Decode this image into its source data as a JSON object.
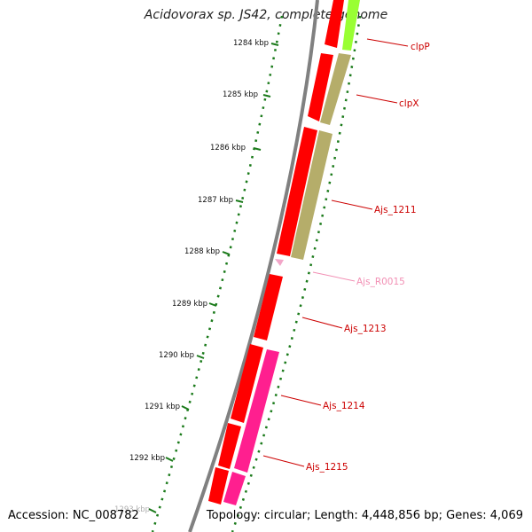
{
  "title": "Acidovorax sp. JS42, complete genome",
  "footer": {
    "accession": "Accession: NC_008782",
    "summary": "Topology: circular; Length: 4,448,856 bp; Genes: 4,069"
  },
  "ticks": [
    "1284 kbp",
    "1285 kbp",
    "1286 kbp",
    "1287 kbp",
    "1288 kbp",
    "1289 kbp",
    "1290 kbp",
    "1291 kbp",
    "1292 kbp",
    "1293 kbp"
  ],
  "features": [
    {
      "label": "clpP",
      "color": "#cc0000"
    },
    {
      "label": "clpX",
      "color": "#cc0000"
    },
    {
      "label": "Ajs_1211",
      "color": "#cc0000"
    },
    {
      "label": "Ajs_R0015",
      "color": "#f28fb4"
    },
    {
      "label": "Ajs_1213",
      "color": "#cc0000"
    },
    {
      "label": "Ajs_1214",
      "color": "#cc0000"
    },
    {
      "label": "Ajs_1215",
      "color": "#cc0000"
    }
  ],
  "colors": {
    "backbone": "#7f7f7f",
    "cds_red": "#ff0000",
    "cds_olive": "#b5ad6a",
    "cds_magenta": "#ff1f8f",
    "cds_lime": "#99ff33",
    "rna_pink": "#f2a6c8",
    "gc_dots": "#1a7a1a"
  }
}
